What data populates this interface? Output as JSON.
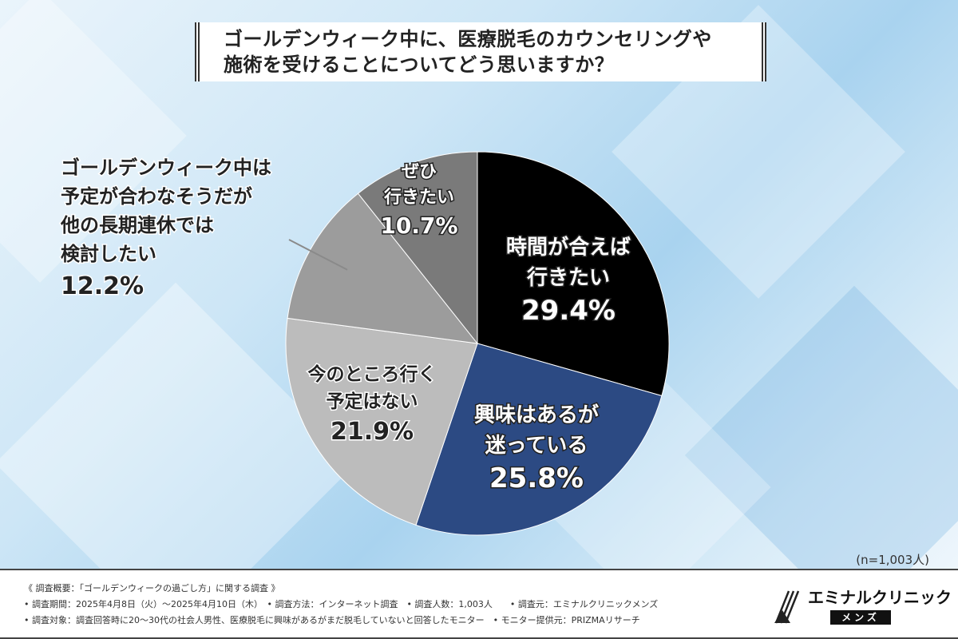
{
  "title": {
    "line1": "ゴールデンウィーク中に、医療脱毛のカウンセリングや",
    "line2": "施術を受けることについてどう思いますか？"
  },
  "chart_data": {
    "type": "pie",
    "title": "ゴールデンウィーク中に、医療脱毛のカウンセリングや施術を受けることについてどう思いますか？",
    "slices": [
      {
        "label": "時間が合えば行きたい",
        "label_lines": [
          "時間が合えば",
          "行きたい"
        ],
        "value": 29.4,
        "value_text": "29.4%",
        "color": "#000000",
        "text_color": "#ffffff"
      },
      {
        "label": "興味はあるが迷っている",
        "label_lines": [
          "興味はあるが",
          "迷っている"
        ],
        "value": 25.8,
        "value_text": "25.8%",
        "color": "#2c4a83",
        "text_color": "#ffffff"
      },
      {
        "label": "今のところ行く予定はない",
        "label_lines": [
          "今のところ行く",
          "予定はない"
        ],
        "value": 21.9,
        "value_text": "21.9%",
        "color": "#bcbcbc",
        "text_color": "#222222"
      },
      {
        "label": "ゴールデンウィーク中は予定が合わなそうだが他の長期連休では検討したい",
        "label_lines": [
          "ゴールデンウィーク中は",
          "予定が合わなそうだが",
          "他の長期連休では",
          "検討したい"
        ],
        "value": 12.2,
        "value_text": "12.2%",
        "color": "#9c9c9c",
        "text_color": "#222222"
      },
      {
        "label": "ぜひ行きたい",
        "label_lines": [
          "ぜひ",
          "行きたい"
        ],
        "value": 10.7,
        "value_text": "10.7%",
        "color": "#7a7a7a",
        "text_color": "#ffffff"
      }
    ],
    "start_angle": "12 o'clock",
    "direction": "clockwise",
    "note": "(n=1,003人)"
  },
  "footer": {
    "line1": "《 調査概要：「ゴールデンウィークの過ごし方」に関する調査 》",
    "line2": "• 調査期間：2025年4月8日（火）～2025年4月10日（木）　• 調査方法：インターネット調査　• 調査人数：1,003人　　• 調査元：エミナルクリニックメンズ",
    "line3": "• 調査対象：調査回答時に20～30代の社会人男性、医療脱毛に興味があるがまだ脱毛していないと回答したモニター　• モニター提供元：PRIZMAリサーチ",
    "brand": "エミナルクリニック",
    "brand_sub": "メンズ"
  }
}
